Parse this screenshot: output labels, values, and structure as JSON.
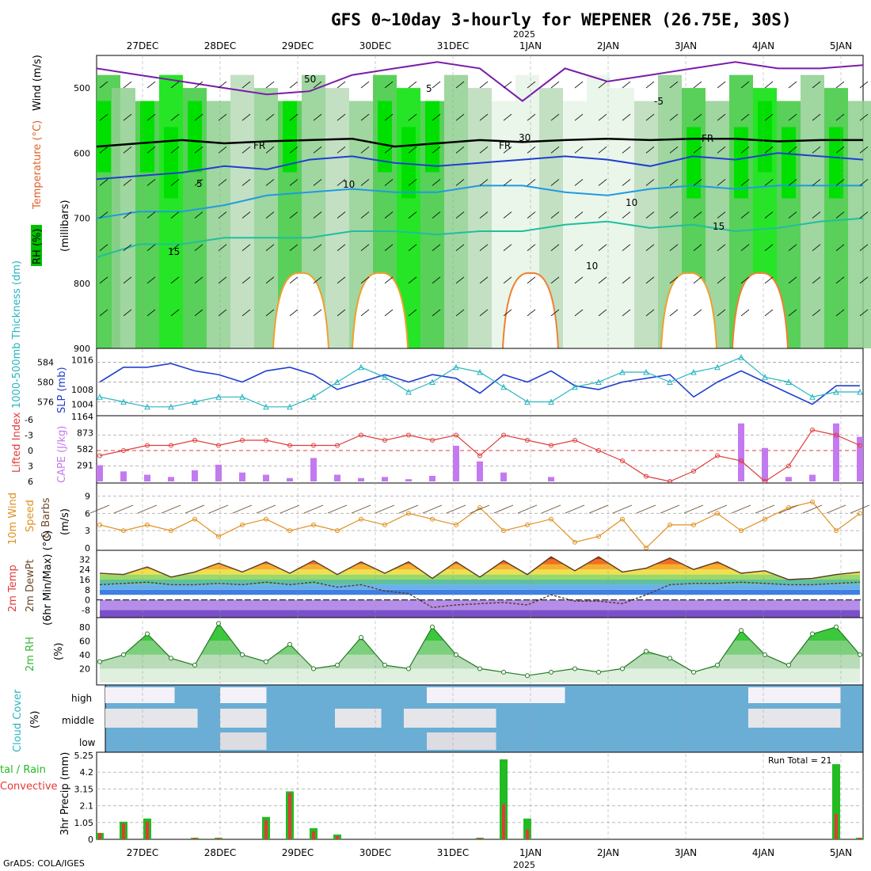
{
  "title": "GFS 0~10day 3-hourly for WEPENER (26.75E, 30S)",
  "credit": "GrADS: COLA/IGES",
  "year_label": "2025",
  "run_total": "Run Total = 21",
  "colors": {
    "rh_green": "#00e000",
    "slp": "#1f3fcf",
    "thickness": "#27b5c1",
    "lifted_index": "#e03c3c",
    "cape": "#c37af0",
    "wind_speed": "#e09020",
    "wind_barb": "#6b4a2a",
    "rh2m": "#33b833",
    "cloud": "#6aaed6",
    "precip_total": "#22bb22",
    "precip_conv": "#e53935"
  },
  "chart_data": [
    {
      "type": "heatmap",
      "name_label": "upper-air",
      "x_dates": [
        "27DEC",
        "28DEC",
        "29DEC",
        "30DEC",
        "31DEC",
        "1JAN",
        "2JAN",
        "3JAN",
        "4JAN",
        "5JAN"
      ],
      "ylabel_parts": [
        "RH (%)",
        "Temperature (°C)",
        "Wind (m/s)",
        "(millibars)"
      ],
      "yticks": [
        "500",
        "600",
        "700",
        "800",
        "900"
      ],
      "ylim": [
        450,
        900
      ],
      "contour_labels": [
        "FR",
        "FR",
        "FR",
        "5",
        "10",
        "15",
        "10",
        "15",
        "-5",
        "5",
        "50",
        "30",
        "10"
      ],
      "isotherms": [
        {
          "label": "-5",
          "y": [
            470,
            480,
            490,
            500,
            510,
            505,
            480,
            470,
            460,
            470,
            520,
            470,
            490,
            480,
            470,
            460,
            470,
            470,
            465
          ]
        },
        {
          "label": "FR",
          "y": [
            590,
            585,
            580,
            585,
            582,
            580,
            578,
            590,
            585,
            580,
            583,
            580,
            578,
            580,
            578,
            578,
            582,
            580,
            580
          ]
        },
        {
          "label": "5",
          "y": [
            640,
            635,
            630,
            620,
            625,
            610,
            605,
            615,
            620,
            615,
            610,
            605,
            610,
            620,
            605,
            610,
            600,
            605,
            610
          ]
        },
        {
          "label": "10",
          "y": [
            700,
            690,
            690,
            680,
            665,
            660,
            655,
            660,
            660,
            650,
            650,
            660,
            665,
            655,
            650,
            655,
            650,
            650,
            650
          ]
        },
        {
          "label": "15",
          "y": [
            760,
            740,
            740,
            730,
            730,
            730,
            720,
            720,
            725,
            720,
            720,
            710,
            705,
            715,
            710,
            720,
            715,
            705,
            700
          ]
        }
      ]
    },
    {
      "type": "line",
      "series": [
        {
          "name": "SLP (mb)",
          "values": [
            1010,
            1014,
            1014,
            1015,
            1013,
            1012,
            1010,
            1013,
            1014,
            1012,
            1008,
            1010,
            1012,
            1010,
            1012,
            1011,
            1007,
            1012,
            1010,
            1013,
            1009,
            1008,
            1010,
            1011,
            1012,
            1006,
            1010,
            1013,
            1010,
            1007,
            1004,
            1009,
            1009
          ]
        },
        {
          "name": "1000-500mb Thickness (dm)",
          "values": [
            577,
            576,
            575,
            575,
            576,
            577,
            577,
            575,
            575,
            577,
            580,
            583,
            581,
            578,
            580,
            583,
            582,
            579,
            576,
            576,
            579,
            580,
            582,
            582,
            580,
            582,
            583,
            585,
            581,
            580,
            577,
            578,
            578
          ]
        }
      ],
      "yticks_left": [
        "576",
        "580",
        "584"
      ],
      "yticks_right": [
        "1004",
        "1008",
        "1016"
      ]
    },
    {
      "type": "bar",
      "series": [
        {
          "name": "Lifted Index",
          "values": [
            1,
            0,
            -1,
            -1,
            -2,
            -1,
            -2,
            -2,
            -1,
            -1,
            -1,
            -3,
            -2,
            -3,
            -2,
            -3,
            1,
            -3,
            -2,
            -1,
            -2,
            0,
            2,
            5,
            6,
            4,
            1,
            2,
            6,
            3,
            -4,
            -3,
            -1
          ]
        },
        {
          "name": "CAPE (J/kg)",
          "values": [
            291,
            180,
            120,
            80,
            200,
            300,
            160,
            120,
            60,
            420,
            120,
            60,
            80,
            40,
            100,
            640,
            360,
            160,
            0,
            80,
            0,
            0,
            0,
            0,
            0,
            0,
            0,
            1040,
            600,
            80,
            120,
            1040,
            800
          ]
        }
      ],
      "yticks_left": [
        "-6",
        "-3",
        "0",
        "3",
        "6"
      ],
      "yticks_right": [
        "291",
        "582",
        "873",
        "1164"
      ]
    },
    {
      "type": "line",
      "series": [
        {
          "name": "10m Wind Speed (m/s)",
          "values": [
            4,
            3,
            4,
            3,
            5,
            2,
            4,
            5,
            3,
            4,
            3,
            5,
            4,
            6,
            5,
            4,
            7,
            3,
            4,
            5,
            1,
            2,
            5,
            0,
            4,
            4,
            6,
            3,
            5,
            7,
            8,
            3,
            6
          ]
        }
      ],
      "yticks": [
        "0",
        "3",
        "6",
        "9"
      ]
    },
    {
      "type": "area",
      "series": [
        {
          "name": "2m Temp (°C)",
          "values": [
            21,
            20,
            26,
            18,
            22,
            29,
            22,
            30,
            21,
            31,
            20,
            30,
            21,
            30,
            17,
            30,
            18,
            31,
            20,
            34,
            23,
            34,
            22,
            25,
            33,
            24,
            30,
            21,
            23,
            16,
            17,
            20,
            22
          ]
        },
        {
          "name": "2m DewPt (°C)",
          "values": [
            12,
            13,
            14,
            12,
            12,
            13,
            12,
            14,
            12,
            14,
            10,
            12,
            7,
            5,
            -6,
            -4,
            -3,
            -2,
            -4,
            4,
            -1,
            -1,
            -3,
            4,
            12,
            13,
            13,
            14,
            13,
            12,
            12,
            13,
            14
          ]
        }
      ],
      "ylabel_parts": [
        "2m Temp",
        "2m DewPt",
        "(6hr Min/Max) (°C)"
      ],
      "yticks": [
        "-8",
        "0",
        "8",
        "16",
        "24",
        "32"
      ]
    },
    {
      "type": "area",
      "series": [
        {
          "name": "2m RH (%)",
          "values": [
            30,
            40,
            70,
            35,
            25,
            85,
            40,
            30,
            55,
            20,
            25,
            65,
            25,
            20,
            80,
            40,
            20,
            15,
            10,
            15,
            20,
            15,
            20,
            45,
            35,
            15,
            25,
            75,
            40,
            25,
            70,
            80,
            40
          ]
        }
      ],
      "yticks": [
        "20",
        "40",
        "60",
        "80"
      ]
    },
    {
      "type": "heatmap",
      "ylabel_parts": [
        "Cloud Cover",
        "(%)"
      ],
      "levels": [
        "high",
        "middle",
        "low"
      ],
      "high": [
        1,
        1,
        1,
        0,
        0,
        1,
        1,
        0,
        0,
        0,
        0,
        0,
        0,
        0,
        1,
        1,
        1,
        1,
        1,
        1,
        0,
        0,
        0,
        0,
        0,
        0,
        0,
        0,
        1,
        1,
        1,
        1,
        0
      ],
      "middle": [
        1,
        1,
        1,
        1,
        0,
        1,
        1,
        0,
        0,
        0,
        1,
        1,
        0,
        1,
        1,
        1,
        1,
        0,
        0,
        0,
        0,
        0,
        0,
        0,
        0,
        0,
        0,
        0,
        1,
        1,
        1,
        1,
        0
      ],
      "low": [
        0,
        0,
        0,
        0,
        0,
        1,
        1,
        0,
        0,
        0,
        0,
        0,
        0,
        0,
        1,
        1,
        1,
        0,
        0,
        0,
        0,
        0,
        0,
        0,
        0,
        0,
        0,
        0,
        0,
        0,
        0,
        0,
        0
      ]
    },
    {
      "type": "bar",
      "series": [
        {
          "name": "Total / Rain",
          "values": [
            0.4,
            1.1,
            1.3,
            0,
            0.1,
            0.1,
            0,
            1.4,
            3.0,
            0.7,
            0.3,
            0,
            0,
            0,
            0,
            0,
            0.1,
            5.0,
            1.3,
            0,
            0,
            0,
            0,
            0,
            0,
            0,
            0,
            0,
            0,
            0,
            0,
            4.7,
            0.1
          ]
        },
        {
          "name": "Convective",
          "values": [
            0.4,
            1.0,
            1.1,
            0,
            0.1,
            0.1,
            0,
            1.2,
            2.9,
            0.5,
            0.2,
            0,
            0,
            0,
            0,
            0,
            0.1,
            2.2,
            0.6,
            0,
            0,
            0,
            0,
            0,
            0,
            0,
            0,
            0,
            0,
            0,
            0,
            1.6,
            0.1
          ]
        }
      ],
      "ylabel": "3hr Precip (mm)",
      "yticks": [
        "0",
        "1.05",
        "2.1",
        "3.15",
        "4.2",
        "5.25"
      ]
    }
  ],
  "panel_labels": {
    "thickness": "1000-500mb Thickness (dm)",
    "slp": "SLP (mb)",
    "lifted": "Lifted Index",
    "cape": "CAPE (J/kg)",
    "wind": [
      "10m Wind",
      "Speed",
      "& Barbs"
    ],
    "wind_units": "(m/s)",
    "rh2m": "2m RH",
    "rh_units": "(%)",
    "precip_left": [
      "tal / Rain",
      "Convective"
    ]
  }
}
